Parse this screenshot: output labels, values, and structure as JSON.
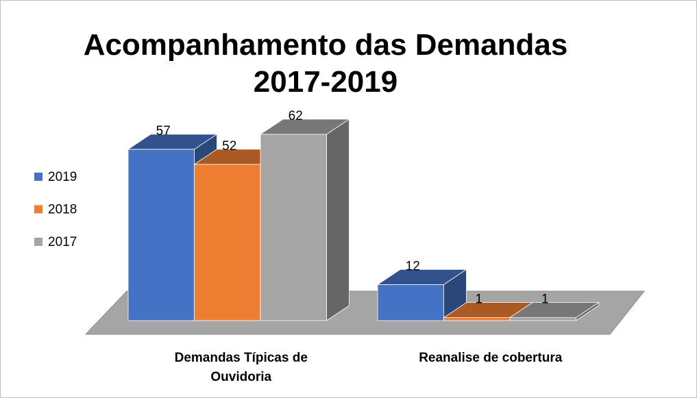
{
  "chart_data": {
    "type": "bar3d",
    "title": "Acompanhamento das Demandas 2017-2019",
    "categories": [
      "Demandas Típicas de Ouvidoria",
      "Reanalise de cobertura"
    ],
    "series": [
      {
        "name": "2019",
        "color": "#4472c4",
        "values": [
          57,
          12
        ]
      },
      {
        "name": "2018",
        "color": "#ed7d31",
        "values": [
          52,
          1
        ]
      },
      {
        "name": "2017",
        "color": "#a5a5a5",
        "values": [
          62,
          1
        ]
      }
    ],
    "legend": "left"
  }
}
